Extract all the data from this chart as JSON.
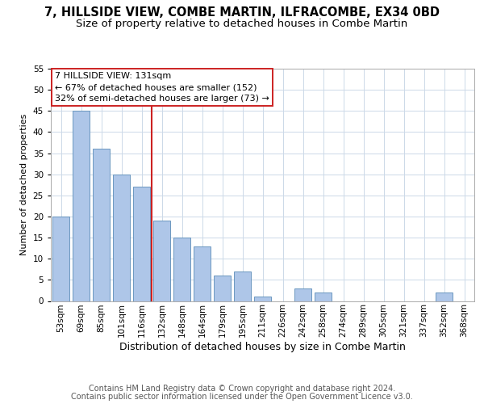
{
  "title1": "7, HILLSIDE VIEW, COMBE MARTIN, ILFRACOMBE, EX34 0BD",
  "title2": "Size of property relative to detached houses in Combe Martin",
  "xlabel": "Distribution of detached houses by size in Combe Martin",
  "ylabel": "Number of detached properties",
  "categories": [
    "53sqm",
    "69sqm",
    "85sqm",
    "101sqm",
    "116sqm",
    "132sqm",
    "148sqm",
    "164sqm",
    "179sqm",
    "195sqm",
    "211sqm",
    "226sqm",
    "242sqm",
    "258sqm",
    "274sqm",
    "289sqm",
    "305sqm",
    "321sqm",
    "337sqm",
    "352sqm",
    "368sqm"
  ],
  "values": [
    20,
    45,
    36,
    30,
    27,
    19,
    15,
    13,
    6,
    7,
    1,
    0,
    3,
    2,
    0,
    0,
    0,
    0,
    0,
    2,
    0
  ],
  "bar_color": "#aec6e8",
  "bar_edge_color": "#5b8db8",
  "highlight_index": 5,
  "highlight_color": "#cc2222",
  "ylim": [
    0,
    55
  ],
  "yticks": [
    0,
    5,
    10,
    15,
    20,
    25,
    30,
    35,
    40,
    45,
    50,
    55
  ],
  "annotation_lines": [
    "7 HILLSIDE VIEW: 131sqm",
    "← 67% of detached houses are smaller (152)",
    "32% of semi-detached houses are larger (73) →"
  ],
  "footer1": "Contains HM Land Registry data © Crown copyright and database right 2024.",
  "footer2": "Contains public sector information licensed under the Open Government Licence v3.0.",
  "bg_color": "#ffffff",
  "grid_color": "#ccd9e8",
  "title1_fontsize": 10.5,
  "title2_fontsize": 9.5,
  "xlabel_fontsize": 9,
  "ylabel_fontsize": 8,
  "tick_fontsize": 7.5,
  "annotation_fontsize": 8,
  "footer_fontsize": 7
}
